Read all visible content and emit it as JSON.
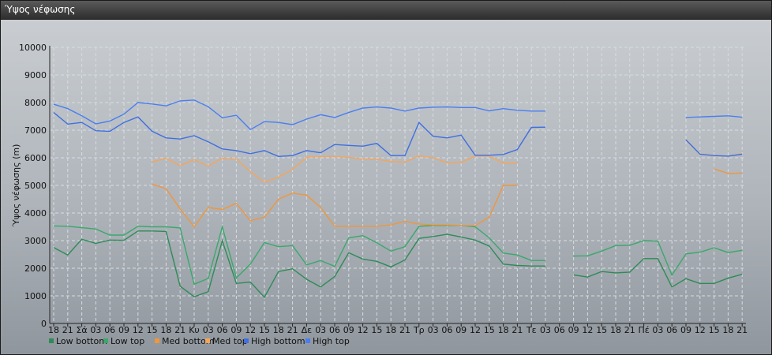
{
  "window": {
    "title": "Ύψος νέφωσης"
  },
  "chart_data": {
    "type": "line",
    "ylabel": "Ύψος νέφωσης (m)",
    "ylim": [
      0,
      10000
    ],
    "yticks": [
      0,
      1000,
      2000,
      3000,
      4000,
      5000,
      6000,
      7000,
      8000,
      9000,
      10000
    ],
    "grid": true,
    "legend_position": "bottom-left",
    "categories": [
      "18",
      "21",
      "Σά",
      "03",
      "06",
      "09",
      "12",
      "15",
      "18",
      "21",
      "Κυ",
      "03",
      "06",
      "09",
      "12",
      "15",
      "18",
      "21",
      "Δε",
      "03",
      "06",
      "09",
      "12",
      "15",
      "18",
      "21",
      "Τρ",
      "03",
      "06",
      "09",
      "12",
      "15",
      "18",
      "21",
      "Τε",
      "03",
      "06",
      "09",
      "12",
      "15",
      "18",
      "21",
      "Πέ",
      "03",
      "06",
      "09",
      "12",
      "15",
      "18",
      "21"
    ],
    "series": [
      {
        "name": "Low bottom",
        "color": "#2e8b57",
        "values": [
          2750,
          2480,
          3050,
          2900,
          3020,
          3010,
          3350,
          3350,
          3330,
          1350,
          970,
          1150,
          3000,
          1450,
          1500,
          950,
          1880,
          1980,
          1600,
          1320,
          1700,
          2560,
          2330,
          2250,
          2050,
          2300,
          3080,
          3150,
          3230,
          3130,
          3020,
          2800,
          2150,
          2100,
          2080,
          2080,
          null,
          1760,
          1680,
          1880,
          1830,
          1860,
          2350,
          2350,
          1320,
          1620,
          1450,
          1450,
          1640,
          1780
        ]
      },
      {
        "name": "Low top",
        "color": "#3aa86b",
        "values": [
          3530,
          3520,
          3470,
          3420,
          3200,
          3200,
          3520,
          3500,
          3500,
          3460,
          1420,
          1630,
          3500,
          1650,
          2150,
          2930,
          2780,
          2820,
          2120,
          2280,
          2070,
          3100,
          3180,
          2920,
          2620,
          2780,
          3520,
          3550,
          3550,
          3550,
          3500,
          3100,
          2550,
          2480,
          2280,
          2280,
          null,
          2440,
          2450,
          2620,
          2820,
          2830,
          3000,
          2980,
          1750,
          2520,
          2580,
          2740,
          2570,
          2650
        ]
      },
      {
        "name": "Med bottom",
        "color": "#f0963c",
        "values": [
          null,
          null,
          null,
          null,
          null,
          null,
          null,
          5050,
          4880,
          4150,
          3500,
          4200,
          4130,
          4350,
          3720,
          3850,
          4500,
          4720,
          4650,
          4200,
          3520,
          3520,
          3520,
          3520,
          3570,
          3700,
          3600,
          3570,
          3570,
          3550,
          3540,
          3850,
          5000,
          5000,
          null,
          null,
          null,
          null,
          null,
          null,
          null,
          null,
          null,
          null,
          null,
          null,
          null,
          5600,
          5430,
          5450
        ]
      },
      {
        "name": "Med top",
        "color": "#f5a55a",
        "values": [
          null,
          null,
          null,
          null,
          null,
          null,
          null,
          5850,
          5980,
          5720,
          5930,
          5700,
          5980,
          5960,
          5500,
          5120,
          5300,
          5580,
          6020,
          6050,
          6050,
          6010,
          5960,
          5940,
          5870,
          5840,
          6070,
          6000,
          5820,
          5830,
          6070,
          6070,
          5800,
          5800,
          null,
          null,
          null,
          null,
          null,
          null,
          null,
          null,
          null,
          null,
          null,
          6650,
          6130,
          6080,
          6060,
          6150
        ]
      },
      {
        "name": "High bottom",
        "color": "#3f6fe0",
        "values": [
          7640,
          7220,
          7280,
          6980,
          6960,
          7280,
          7480,
          6960,
          6720,
          6680,
          6800,
          6580,
          6320,
          6260,
          6150,
          6260,
          6050,
          6080,
          6260,
          6180,
          6480,
          6450,
          6420,
          6520,
          6080,
          6080,
          7280,
          6780,
          6720,
          6820,
          6090,
          6090,
          6120,
          6300,
          7100,
          7110,
          null,
          null,
          null,
          null,
          null,
          null,
          null,
          null,
          null,
          6650,
          6130,
          6080,
          6060,
          6130
        ]
      },
      {
        "name": "High top",
        "color": "#4a7ef0",
        "values": [
          7940,
          7780,
          7520,
          7230,
          7330,
          7580,
          8000,
          7950,
          7880,
          8060,
          8090,
          7850,
          7450,
          7540,
          7020,
          7310,
          7280,
          7200,
          7400,
          7560,
          7460,
          7640,
          7800,
          7840,
          7800,
          7690,
          7800,
          7830,
          7840,
          7820,
          7820,
          7700,
          7780,
          7720,
          7690,
          7690,
          null,
          null,
          null,
          null,
          null,
          null,
          null,
          null,
          null,
          7460,
          7480,
          7500,
          7520,
          7470
        ]
      }
    ]
  }
}
